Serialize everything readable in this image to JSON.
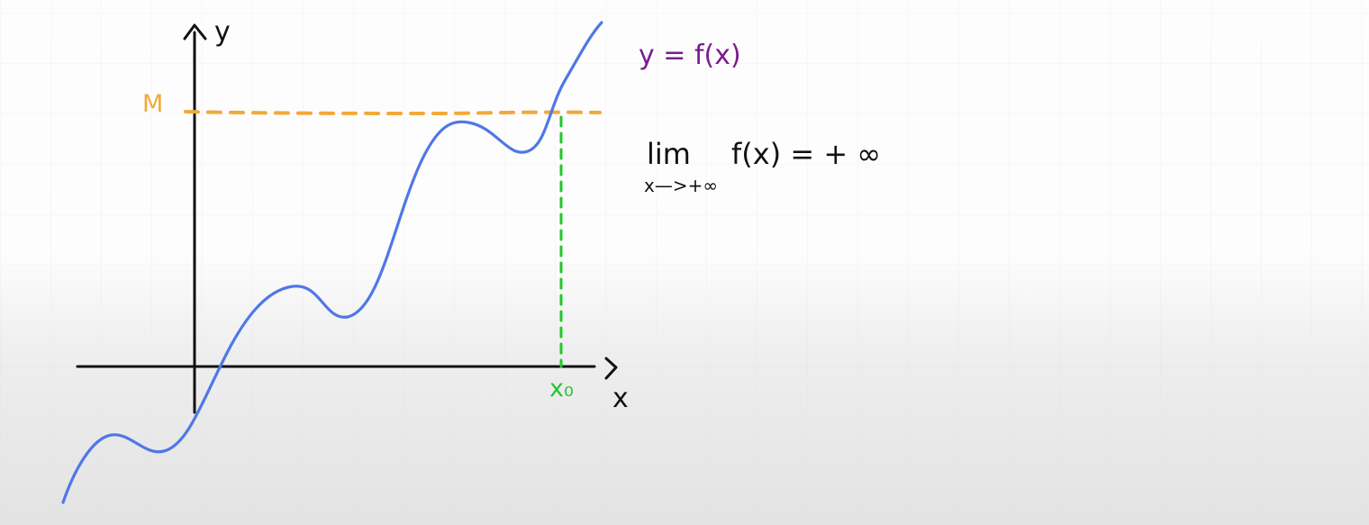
{
  "diagram": {
    "y_axis_label": "y",
    "x_axis_label": "x",
    "threshold_label": "M",
    "curve_label": "y = f(x)",
    "point_label": "x₀",
    "limit": {
      "operator": "lim",
      "subscript": "x—>+∞",
      "expression": "f(x) = + ∞"
    },
    "colors": {
      "axis": "#111111",
      "curve": "#4f78e6",
      "threshold": "#f2a938",
      "vertical_marker": "#24c52f",
      "curve_label": "#7a1d8c",
      "formula": "#111111"
    }
  }
}
